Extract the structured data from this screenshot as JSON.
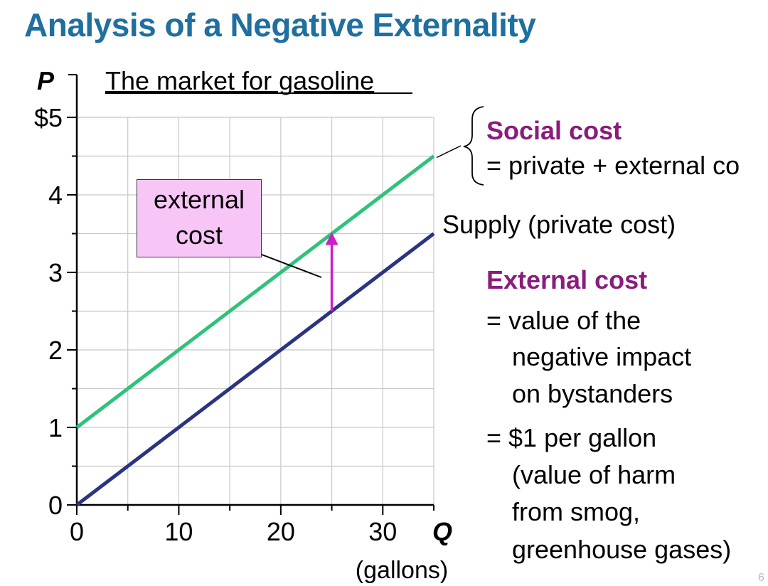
{
  "slide": {
    "title": "Analysis of a Negative Externality",
    "page_number": "6"
  },
  "chart_data": {
    "type": "line",
    "title": "The market for gasoline",
    "ylabel": "P",
    "xlabel": "Q",
    "x_unit": "(gallons)",
    "xlim": [
      0,
      35
    ],
    "ylim": [
      0,
      5
    ],
    "x_ticks": [
      "0",
      "10",
      "20",
      "30"
    ],
    "x_tick_values": [
      0,
      10,
      20,
      30
    ],
    "y_ticks": [
      "0",
      "1",
      "2",
      "3",
      "4",
      "$5"
    ],
    "y_tick_values": [
      0,
      1,
      2,
      3,
      4,
      5
    ],
    "grid": true,
    "series": [
      {
        "name": "Supply (private cost)",
        "color": "#2b3383",
        "x": [
          0,
          35
        ],
        "y": [
          0,
          3.5
        ]
      },
      {
        "name": "Social cost",
        "color": "#2fc27a",
        "x": [
          0,
          35
        ],
        "y": [
          1,
          4.5
        ]
      }
    ],
    "arrow": {
      "x": 25,
      "from_y": 2.5,
      "to_y": 3.5,
      "color": "#cc1fcc"
    },
    "callout": {
      "lines": [
        "external",
        "cost"
      ],
      "fill": "#f7c6f7"
    }
  },
  "annotations": {
    "social_cost_title": "Social cost",
    "social_cost_def": "= private + external co",
    "supply_label": "Supply (private cost)",
    "external_cost_title": "External cost",
    "external_cost_lines": [
      "= value of the",
      "negative impact",
      "on bystanders",
      "= $1 per gallon",
      "(value of harm",
      "from smog,",
      "greenhouse gases)"
    ]
  },
  "colors": {
    "title": "#1f6f9f",
    "accent_purple": "#8a1c7c"
  }
}
